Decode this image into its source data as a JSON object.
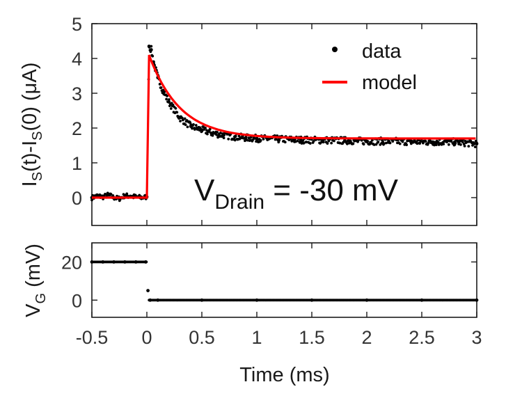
{
  "chart_data": [
    {
      "type": "scatter",
      "panel": "top",
      "ylabel": {
        "main": "I",
        "sub1": "S",
        "mid": "(t)-I",
        "sub2": "S",
        "tail": "(0) (μA)"
      },
      "xlim": [
        -0.5,
        3
      ],
      "ylim": [
        -0.8,
        5
      ],
      "yticks": [
        "5",
        "4",
        "3",
        "2",
        "1",
        "0"
      ],
      "ytick_values": [
        5,
        4,
        3,
        2,
        1,
        0
      ],
      "grid": false,
      "legend": {
        "position": "top-right",
        "entries": [
          "data",
          "model"
        ]
      },
      "colors": {
        "data": "#000000",
        "model": "#ff0000"
      },
      "annotation": {
        "main": "V",
        "sub": "Drain",
        "rest": " = -30 mV"
      },
      "series": [
        {
          "name": "data",
          "type": "scatter",
          "x": [
            -0.5,
            -0.45,
            -0.4,
            -0.35,
            -0.3,
            -0.25,
            -0.2,
            -0.15,
            -0.1,
            -0.05,
            0.0,
            0.02,
            0.04,
            0.06,
            0.1,
            0.15,
            0.2,
            0.3,
            0.4,
            0.5,
            0.6,
            0.7,
            0.8,
            0.9,
            1.0,
            1.2,
            1.4,
            1.6,
            1.8,
            2.0,
            2.2,
            2.4,
            2.6,
            2.8,
            3.0
          ],
          "y": [
            0.0,
            0.05,
            0.02,
            0.08,
            0.0,
            -0.03,
            0.06,
            0.04,
            0.02,
            0.0,
            0.02,
            4.35,
            4.25,
            3.9,
            3.45,
            3.05,
            2.75,
            2.3,
            2.05,
            1.95,
            1.85,
            1.8,
            1.75,
            1.72,
            1.7,
            1.68,
            1.66,
            1.65,
            1.64,
            1.62,
            1.62,
            1.61,
            1.6,
            1.6,
            1.55
          ]
        },
        {
          "name": "model",
          "type": "line",
          "x": [
            -0.5,
            0.0,
            0.02,
            0.05,
            0.1,
            0.2,
            0.3,
            0.5,
            0.75,
            1.0,
            1.5,
            2.0,
            2.5,
            3.0
          ],
          "y": [
            0.0,
            0.0,
            4.1,
            3.85,
            3.45,
            2.9,
            2.5,
            2.1,
            1.85,
            1.75,
            1.7,
            1.7,
            1.7,
            1.7
          ]
        }
      ]
    },
    {
      "type": "scatter",
      "panel": "bottom",
      "ylabel": {
        "main": "V",
        "sub": "G",
        "tail": " (mV)"
      },
      "xlabel": "Time (ms)",
      "xlim": [
        -0.5,
        3
      ],
      "ylim": [
        -9,
        30
      ],
      "xticks": [
        "-0.5",
        "0",
        "0.5",
        "1",
        "1.5",
        "2",
        "2.5",
        "3"
      ],
      "xtick_values": [
        -0.5,
        0,
        0.5,
        1,
        1.5,
        2,
        2.5,
        3
      ],
      "yticks": [
        "20",
        "0"
      ],
      "ytick_values": [
        20,
        0
      ],
      "grid": false,
      "series": [
        {
          "name": "VG",
          "x": [
            -0.5,
            -0.4,
            -0.3,
            -0.2,
            -0.1,
            -0.01,
            0.01,
            0.03,
            0.1,
            0.5,
            1.0,
            1.5,
            2.0,
            2.5,
            3.0
          ],
          "y": [
            20,
            20,
            20,
            20,
            20,
            20,
            5,
            0,
            0,
            0,
            0,
            0,
            0,
            0,
            0
          ]
        }
      ]
    }
  ]
}
